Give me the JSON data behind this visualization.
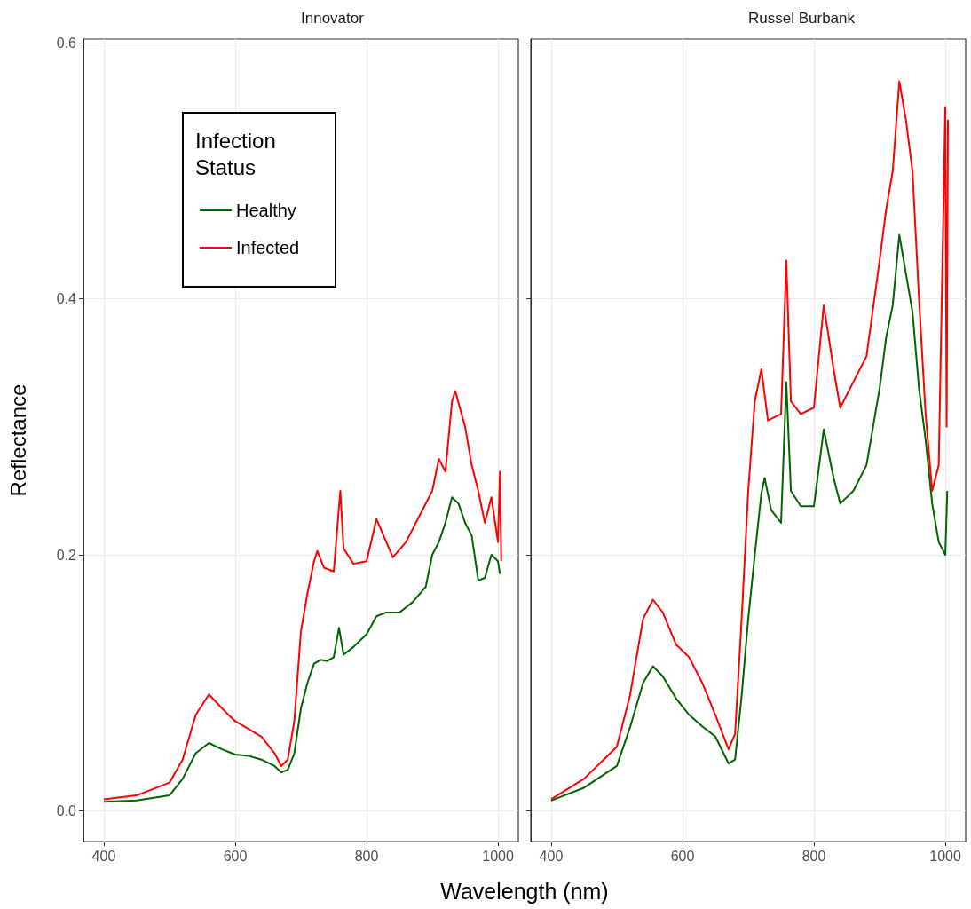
{
  "chart_data": [
    {
      "type": "line",
      "title": "Innovator",
      "xlabel": "Wavelength (nm)",
      "ylabel": "Reflectance",
      "legend_title": "Infection Status",
      "legend": "top left",
      "grid": true,
      "line_style": "solid",
      "marker": "none",
      "xlim": [
        369,
        1031
      ],
      "ylim": [
        -0.024,
        0.603
      ],
      "xticks": [
        400,
        600,
        800,
        1000
      ],
      "yticks": [
        {
          "value": 0,
          "label": "0.0"
        },
        {
          "value": 0.2,
          "label": "0.2"
        },
        {
          "value": 0.4,
          "label": "0.4"
        },
        {
          "value": 0.6,
          "label": "0.6"
        }
      ],
      "series": [
        {
          "name": "Healthy",
          "color": "#006400",
          "x": [
            400,
            450,
            500,
            520,
            540,
            560,
            580,
            600,
            620,
            640,
            660,
            670,
            680,
            690,
            700,
            710,
            720,
            730,
            740,
            750,
            758,
            765,
            780,
            800,
            815,
            830,
            850,
            870,
            890,
            900,
            910,
            920,
            930,
            940,
            950,
            960,
            970,
            980,
            990,
            1000,
            1003
          ],
          "values": [
            0.007,
            0.008,
            0.012,
            0.025,
            0.045,
            0.053,
            0.048,
            0.044,
            0.043,
            0.04,
            0.035,
            0.03,
            0.032,
            0.045,
            0.08,
            0.1,
            0.115,
            0.118,
            0.117,
            0.12,
            0.143,
            0.122,
            0.128,
            0.138,
            0.152,
            0.155,
            0.155,
            0.163,
            0.175,
            0.2,
            0.21,
            0.225,
            0.245,
            0.24,
            0.225,
            0.215,
            0.18,
            0.182,
            0.2,
            0.195,
            0.185
          ]
        },
        {
          "name": "Infected",
          "color": "#ff0000",
          "x": [
            400,
            450,
            500,
            520,
            540,
            560,
            580,
            600,
            620,
            640,
            660,
            670,
            680,
            690,
            700,
            710,
            720,
            725,
            735,
            750,
            760,
            765,
            780,
            800,
            815,
            830,
            840,
            860,
            880,
            900,
            910,
            920,
            930,
            935,
            950,
            960,
            970,
            980,
            990,
            1000,
            1003,
            1005
          ],
          "values": [
            0.009,
            0.012,
            0.022,
            0.04,
            0.075,
            0.091,
            0.08,
            0.07,
            0.064,
            0.058,
            0.045,
            0.035,
            0.04,
            0.07,
            0.14,
            0.17,
            0.195,
            0.203,
            0.19,
            0.187,
            0.25,
            0.205,
            0.193,
            0.195,
            0.228,
            0.21,
            0.198,
            0.21,
            0.23,
            0.25,
            0.275,
            0.265,
            0.32,
            0.328,
            0.3,
            0.27,
            0.25,
            0.225,
            0.245,
            0.21,
            0.265,
            0.195
          ]
        }
      ]
    },
    {
      "type": "line",
      "title": "Russel Burbank",
      "tick_labels": "x",
      "legend": false,
      "grid": true,
      "line_style": "solid",
      "marker": "none",
      "xlim": [
        369,
        1031
      ],
      "ylim": [
        -0.024,
        0.603
      ],
      "xticks": [
        400,
        600,
        800,
        1000
      ],
      "yticks": [
        0,
        0.2,
        0.4,
        0.6
      ],
      "series": [
        {
          "color": "#006400",
          "x": [
            400,
            450,
            500,
            520,
            540,
            555,
            570,
            590,
            610,
            630,
            650,
            670,
            680,
            690,
            700,
            710,
            720,
            725,
            735,
            750,
            758,
            765,
            780,
            800,
            815,
            830,
            840,
            860,
            880,
            900,
            910,
            920,
            930,
            940,
            950,
            960,
            970,
            980,
            990,
            1000,
            1003
          ],
          "values": [
            0.008,
            0.018,
            0.035,
            0.065,
            0.1,
            0.113,
            0.105,
            0.088,
            0.075,
            0.066,
            0.058,
            0.037,
            0.04,
            0.09,
            0.15,
            0.2,
            0.248,
            0.26,
            0.235,
            0.225,
            0.335,
            0.25,
            0.238,
            0.238,
            0.298,
            0.26,
            0.24,
            0.25,
            0.27,
            0.33,
            0.37,
            0.395,
            0.45,
            0.42,
            0.39,
            0.33,
            0.29,
            0.24,
            0.21,
            0.2,
            0.25
          ]
        },
        {
          "color": "#ff0000",
          "x": [
            400,
            450,
            500,
            520,
            540,
            555,
            570,
            590,
            610,
            630,
            650,
            670,
            680,
            690,
            700,
            710,
            720,
            730,
            750,
            758,
            765,
            780,
            800,
            815,
            830,
            840,
            860,
            880,
            900,
            910,
            920,
            930,
            940,
            950,
            960,
            970,
            980,
            990,
            1000,
            1002,
            1004
          ],
          "values": [
            0.009,
            0.025,
            0.05,
            0.09,
            0.15,
            0.165,
            0.155,
            0.13,
            0.12,
            0.1,
            0.075,
            0.048,
            0.06,
            0.15,
            0.25,
            0.32,
            0.345,
            0.305,
            0.31,
            0.43,
            0.32,
            0.31,
            0.315,
            0.395,
            0.345,
            0.315,
            0.335,
            0.355,
            0.43,
            0.47,
            0.5,
            0.57,
            0.54,
            0.5,
            0.4,
            0.31,
            0.25,
            0.27,
            0.55,
            0.3,
            0.54
          ]
        }
      ]
    }
  ]
}
